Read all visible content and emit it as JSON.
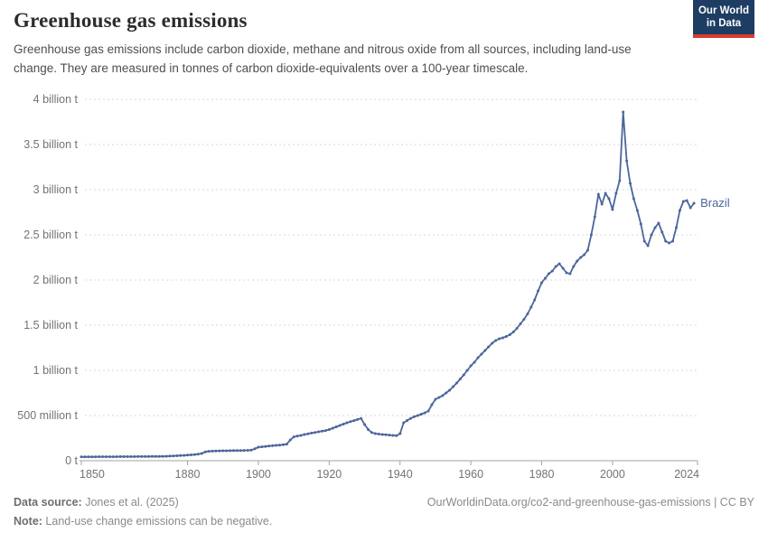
{
  "header": {
    "title": "Greenhouse gas emissions",
    "subtitle": "Greenhouse gas emissions include carbon dioxide, methane and nitrous oxide from all sources, including land-use change. They are measured in tonnes of carbon dioxide-equivalents over a 100-year timescale.",
    "logo": {
      "line1": "Our World",
      "line2": "in Data"
    }
  },
  "footer": {
    "source_label": "Data source:",
    "source_value": " Jones et al. (2025)",
    "note_label": "Note:",
    "note_value": " Land-use change emissions can be negative.",
    "citation": "OurWorldinData.org/co2-and-greenhouse-gas-emissions | CC BY"
  },
  "colors": {
    "line": "#4c669c",
    "grid": "#dadada",
    "axis": "#a3a3a3",
    "tick_label": "#737373",
    "logo_bg": "#1d3d63",
    "logo_red": "#d73c2c",
    "title": "#2d2d2d",
    "subtitle": "#4f4f4f"
  },
  "chart_data": {
    "type": "line",
    "title": "Greenhouse gas emissions",
    "series_label": "Brazil",
    "unit": "tonnes of CO2-equivalents",
    "start_year": 1850,
    "end_year": 2023,
    "x_axis_end": 2024,
    "ylim": [
      0,
      4000000000.0
    ],
    "grid": "dashed-horizontal",
    "legend_position": "end-of-line",
    "x_ticks": [
      1850,
      1880,
      1900,
      1920,
      1940,
      1960,
      1980,
      2000,
      2024
    ],
    "y_ticks": [
      {
        "value": 0,
        "label": "0 t"
      },
      {
        "value": 500000000.0,
        "label": "500 million t"
      },
      {
        "value": 1000000000.0,
        "label": "1 billion t"
      },
      {
        "value": 1500000000.0,
        "label": "1.5 billion t"
      },
      {
        "value": 2000000000.0,
        "label": "2 billion t"
      },
      {
        "value": 2500000000.0,
        "label": "2.5 billion t"
      },
      {
        "value": 3000000000.0,
        "label": "3 billion t"
      },
      {
        "value": 3500000000.0,
        "label": "3.5 billion t"
      },
      {
        "value": 4000000000.0,
        "label": "4 billion t"
      }
    ],
    "values_unit": "billion tonnes CO2e per year, 1850-2023",
    "values": [
      0.042,
      0.042,
      0.043,
      0.043,
      0.043,
      0.044,
      0.044,
      0.044,
      0.044,
      0.044,
      0.044,
      0.045,
      0.045,
      0.045,
      0.045,
      0.045,
      0.046,
      0.046,
      0.046,
      0.046,
      0.047,
      0.047,
      0.047,
      0.048,
      0.049,
      0.051,
      0.053,
      0.055,
      0.057,
      0.059,
      0.062,
      0.065,
      0.068,
      0.072,
      0.08,
      0.098,
      0.104,
      0.106,
      0.108,
      0.109,
      0.11,
      0.11,
      0.111,
      0.112,
      0.112,
      0.113,
      0.114,
      0.115,
      0.117,
      0.132,
      0.15,
      0.154,
      0.158,
      0.162,
      0.166,
      0.17,
      0.173,
      0.177,
      0.183,
      0.23,
      0.264,
      0.272,
      0.28,
      0.29,
      0.298,
      0.306,
      0.313,
      0.32,
      0.327,
      0.334,
      0.345,
      0.36,
      0.375,
      0.39,
      0.405,
      0.42,
      0.432,
      0.444,
      0.456,
      0.468,
      0.4,
      0.345,
      0.312,
      0.3,
      0.295,
      0.29,
      0.287,
      0.284,
      0.28,
      0.277,
      0.3,
      0.42,
      0.445,
      0.468,
      0.487,
      0.5,
      0.515,
      0.53,
      0.55,
      0.62,
      0.68,
      0.7,
      0.72,
      0.75,
      0.78,
      0.82,
      0.86,
      0.905,
      0.95,
      1.0,
      1.05,
      1.09,
      1.14,
      1.18,
      1.22,
      1.26,
      1.3,
      1.33,
      1.35,
      1.36,
      1.375,
      1.395,
      1.425,
      1.465,
      1.515,
      1.565,
      1.625,
      1.7,
      1.78,
      1.88,
      1.97,
      2.02,
      2.07,
      2.1,
      2.15,
      2.18,
      2.13,
      2.08,
      2.07,
      2.15,
      2.21,
      2.25,
      2.28,
      2.33,
      2.5,
      2.7,
      2.95,
      2.84,
      2.96,
      2.9,
      2.78,
      2.96,
      3.1,
      3.86,
      3.32,
      3.07,
      2.9,
      2.77,
      2.62,
      2.43,
      2.38,
      2.5,
      2.58,
      2.63,
      2.53,
      2.43,
      2.41,
      2.43,
      2.58,
      2.77,
      2.87,
      2.88,
      2.8,
      2.85
    ]
  }
}
